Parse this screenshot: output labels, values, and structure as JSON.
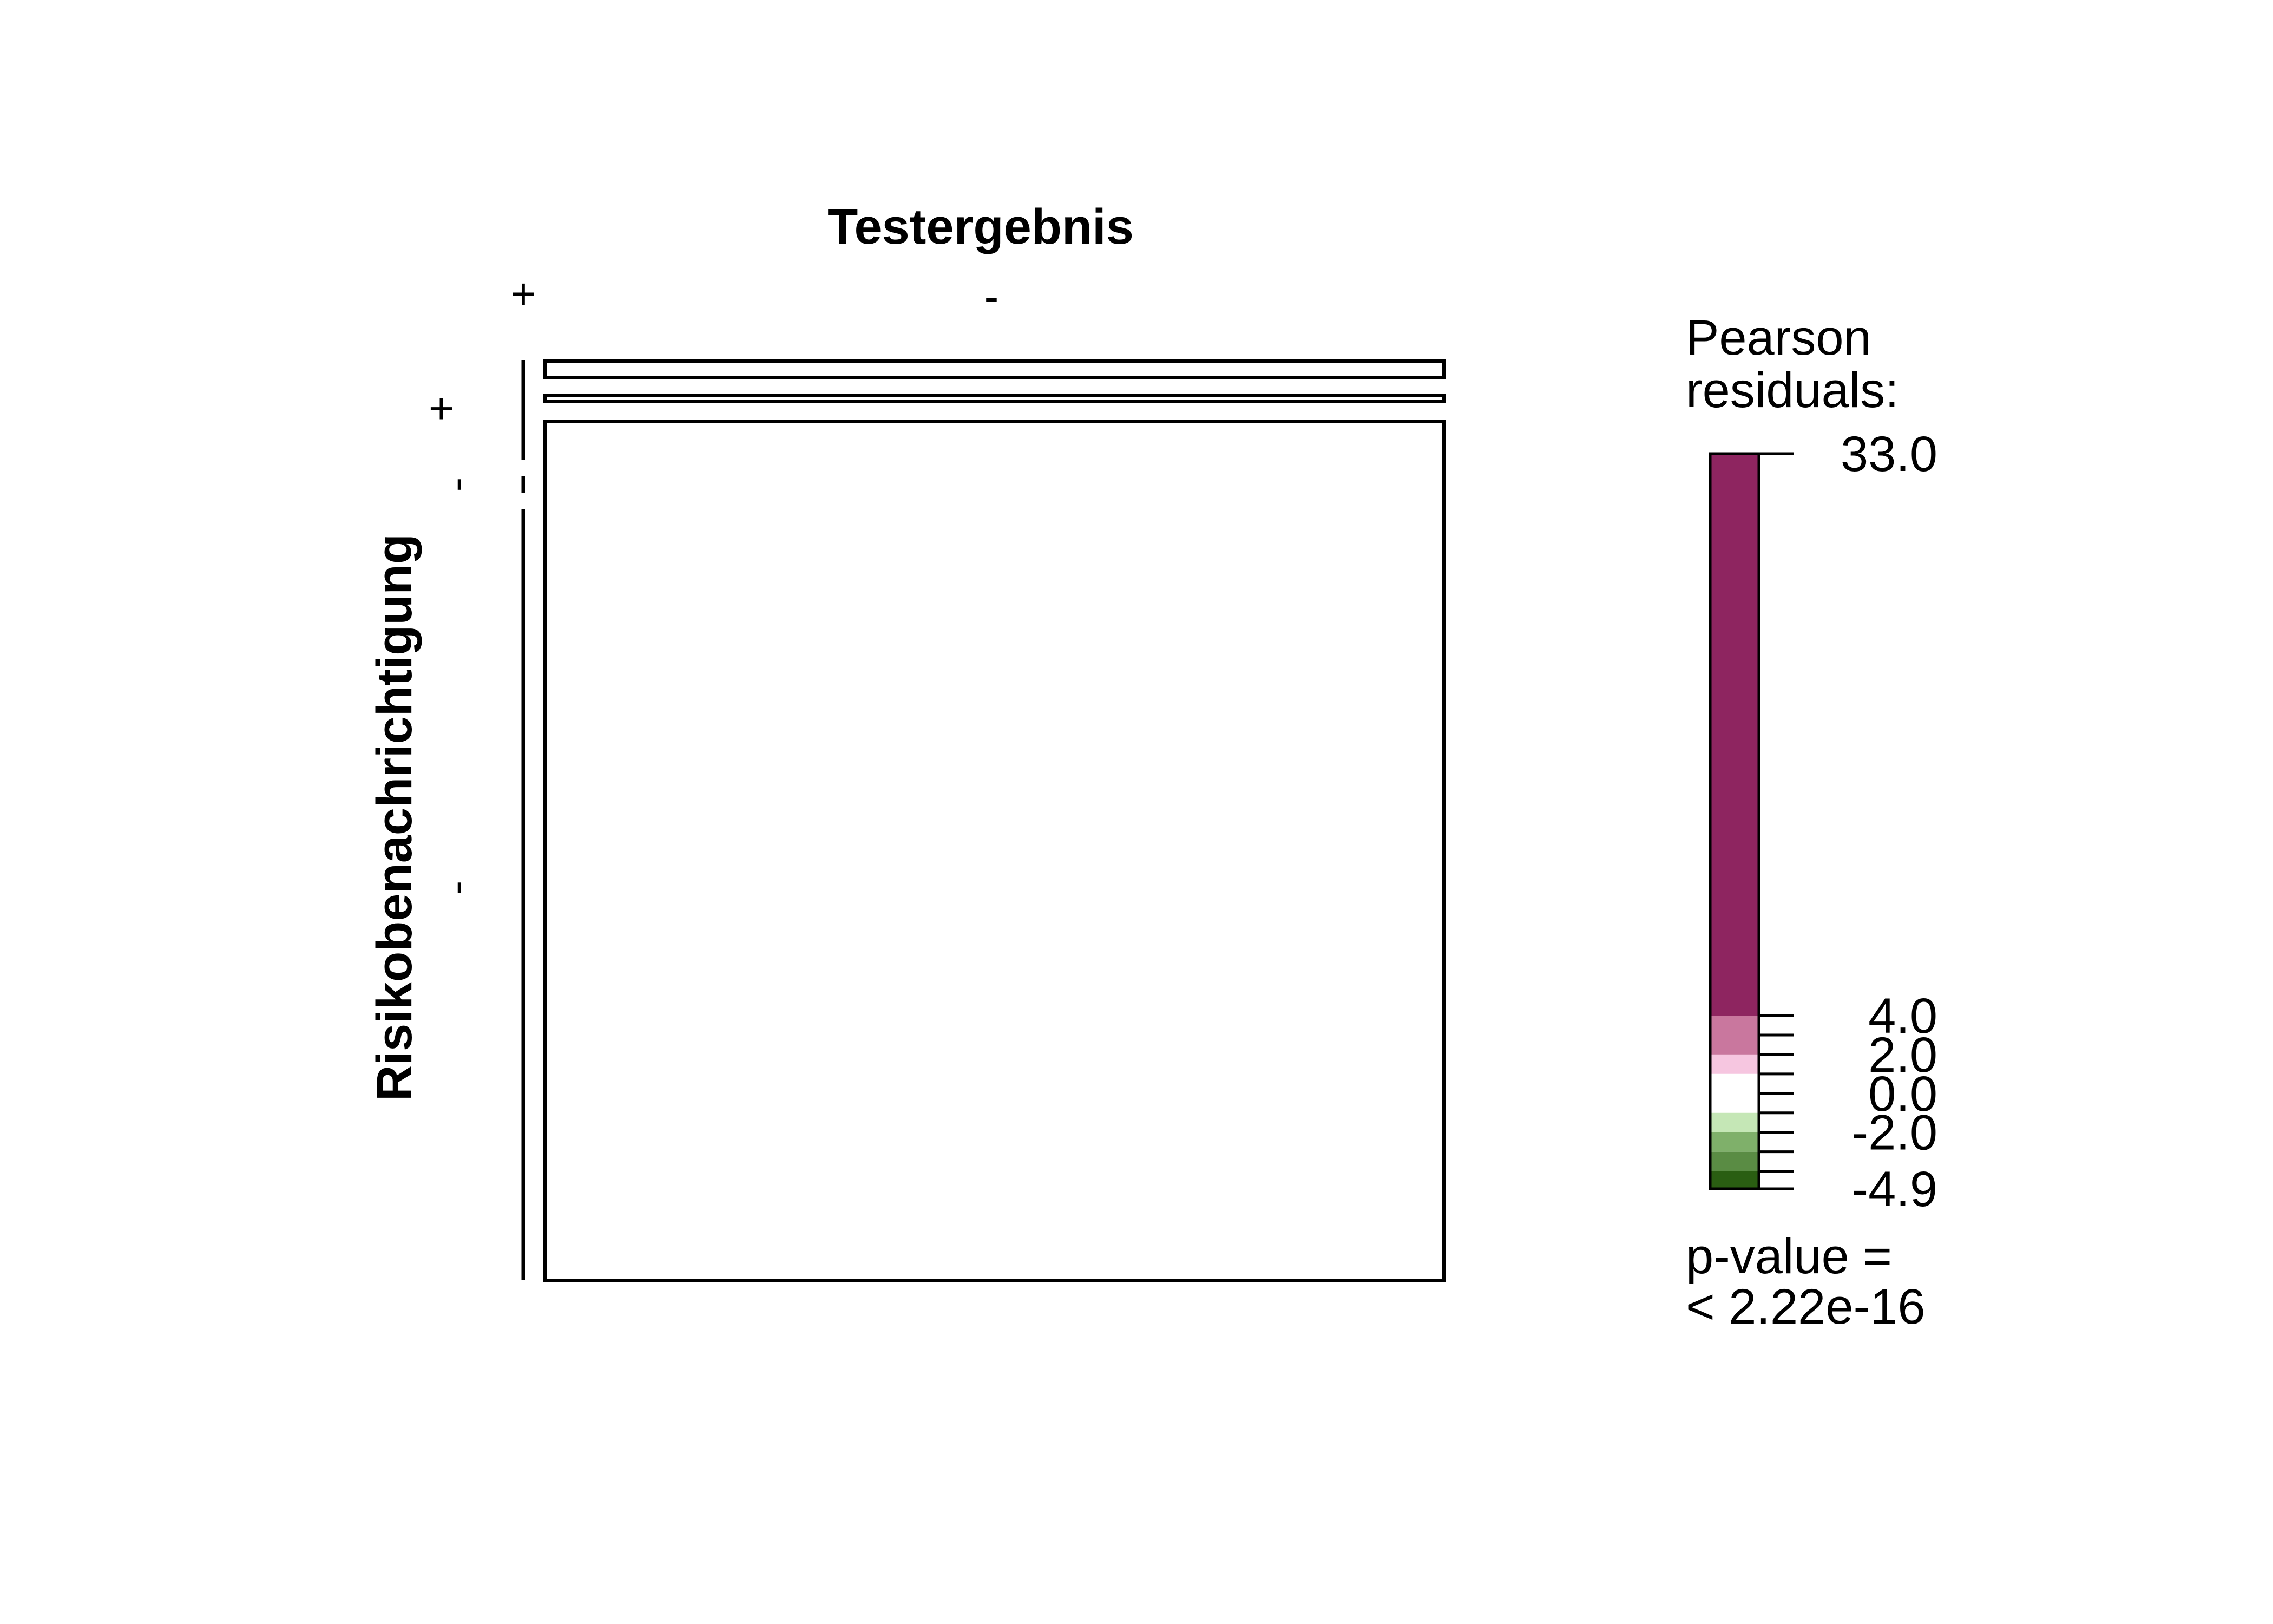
{
  "chart_data": {
    "type": "mosaic",
    "col_variable": "Testergebnis",
    "row_variable": "Risikobenachrichtigung",
    "col_levels": [
      "+",
      "-"
    ],
    "row_levels": [
      "+",
      "-"
    ],
    "cells": [
      {
        "row": "+",
        "col": "+",
        "residual": 33.0
      },
      {
        "row": "+",
        "col": "-",
        "residual": 0.0
      },
      {
        "row": "-",
        "col": "+",
        "residual": -4.9
      },
      {
        "row": "-",
        "col": "-",
        "residual": 0.0
      }
    ],
    "legend": {
      "title_line1": "Pearson",
      "title_line2": "residuals:",
      "tick_labels": [
        "33.0",
        "4.0",
        "2.0",
        "0.0",
        "-2.0",
        "-4.9"
      ],
      "bands": [
        {
          "from": 4.0,
          "to": 33.0,
          "color": "#8E2560"
        },
        {
          "from": 2.0,
          "to": 4.0,
          "color": "#C9779E"
        },
        {
          "from": 1.0,
          "to": 2.0,
          "color": "#F6C6E0"
        },
        {
          "from": -1.0,
          "to": 1.0,
          "color": "#FFFFFF"
        },
        {
          "from": -2.0,
          "to": -1.0,
          "color": "#C5E7B6"
        },
        {
          "from": -3.0,
          "to": -2.0,
          "color": "#7FB06A"
        },
        {
          "from": -4.0,
          "to": -3.0,
          "color": "#5A8C44"
        },
        {
          "from": -4.9,
          "to": -4.0,
          "color": "#2A5E12"
        }
      ],
      "pvalue_line1": "p-value =",
      "pvalue_line2": "< 2.22e-16"
    }
  }
}
